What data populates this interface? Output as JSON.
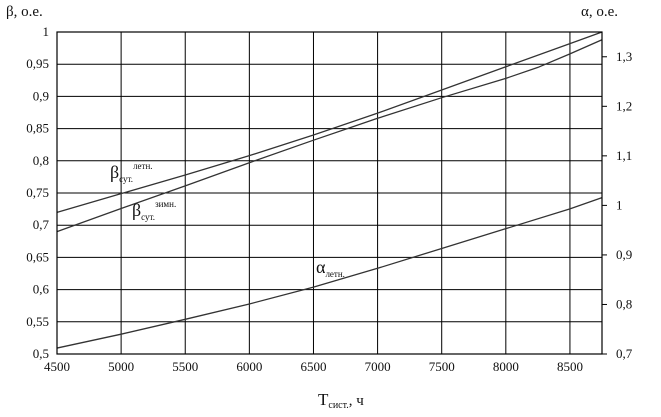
{
  "chart_data": {
    "type": "line",
    "title": "",
    "xlabel": {
      "main": "T",
      "sub": "сист.",
      "unit": ", ч"
    },
    "ylabel_left": "β, о.е.",
    "ylabel_right": "α, о.е.",
    "xlim": [
      4500,
      8750
    ],
    "ylim_left": [
      0.5,
      1.0
    ],
    "ylim_right": [
      0.7,
      1.35
    ],
    "grid": true,
    "x_ticks": [
      "4500",
      "5000",
      "5500",
      "6000",
      "6500",
      "7000",
      "7500",
      "8000",
      "8500"
    ],
    "y_left_ticks": [
      "0,5",
      "0,55",
      "0,6",
      "0,65",
      "0,7",
      "0,75",
      "0,8",
      "0,85",
      "0,9",
      "0,95",
      "1"
    ],
    "y_right_ticks": [
      "0,7",
      "0,8",
      "0,9",
      "1",
      "1,1",
      "1,2",
      "1,3"
    ],
    "series": [
      {
        "name": "β сут. летн.",
        "axis": "left",
        "label": {
          "base": "β",
          "sub": "сут.",
          "sup": "летн."
        },
        "x": [
          4500,
          5000,
          5500,
          6000,
          6500,
          7000,
          7500,
          8000,
          8500,
          8750
        ],
        "y": [
          0.72,
          0.749,
          0.778,
          0.808,
          0.84,
          0.874,
          0.91,
          0.946,
          0.982,
          1.0
        ]
      },
      {
        "name": "β сут. зимн.",
        "axis": "left",
        "label": {
          "base": "β",
          "sub": "сут.",
          "sup": "зимн."
        },
        "x": [
          4500,
          5000,
          5500,
          6000,
          6500,
          7000,
          7500,
          8000,
          8250,
          8500,
          8750
        ],
        "y": [
          0.69,
          0.726,
          0.761,
          0.797,
          0.832,
          0.866,
          0.898,
          0.928,
          0.945,
          0.966,
          0.988
        ]
      },
      {
        "name": "α летн.",
        "axis": "right",
        "label": {
          "base": "α",
          "sub": "летн."
        },
        "x": [
          4500,
          5000,
          5500,
          6000,
          6500,
          7000,
          7500,
          8000,
          8500,
          8750
        ],
        "y": [
          0.712,
          0.74,
          0.77,
          0.801,
          0.835,
          0.873,
          0.913,
          0.953,
          0.993,
          1.0157
        ]
      }
    ]
  }
}
